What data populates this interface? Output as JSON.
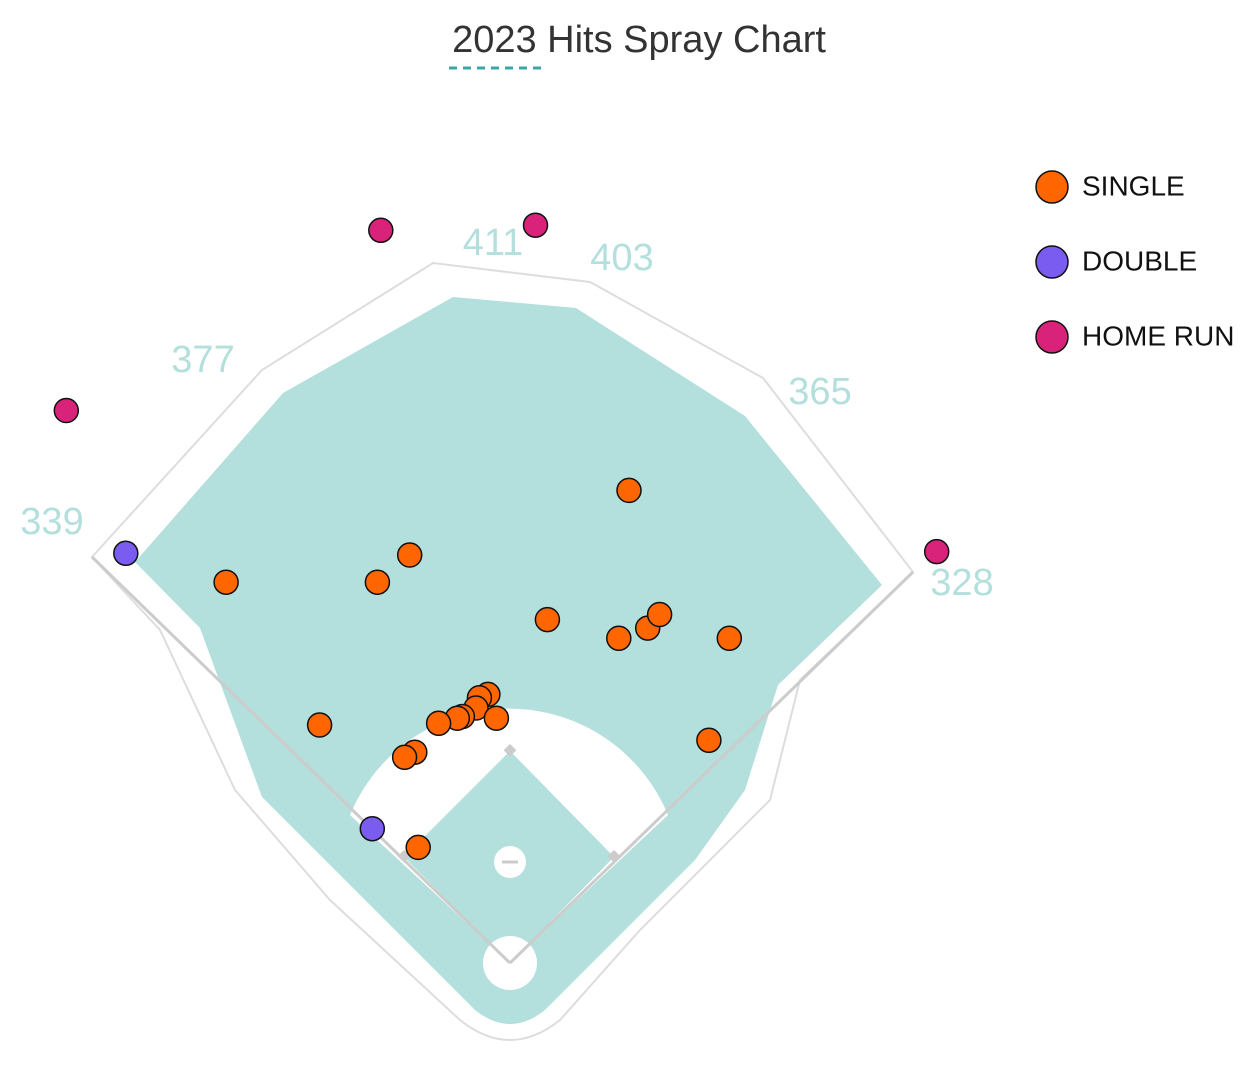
{
  "chart_data": {
    "type": "scatter",
    "title": "2023 Hits Spray Chart",
    "xlim": [
      -300,
      300
    ],
    "ylim": [
      -50,
      560
    ],
    "fence_distances": [
      339,
      377,
      411,
      403,
      365,
      328
    ],
    "series": [
      {
        "name": "SINGLE",
        "color": "#ff6600",
        "x": [
          70,
          -59,
          -167,
          -78,
          22,
          64,
          81,
          88,
          129,
          -112,
          117,
          -13,
          -18,
          -20,
          -28,
          -31,
          -42,
          -8,
          -56,
          -62,
          -54
        ],
        "y": [
          278,
          240,
          224,
          224,
          202,
          191,
          197,
          205,
          191,
          140,
          131,
          158,
          156,
          150,
          145,
          144,
          141,
          144,
          124,
          121,
          68
        ]
      },
      {
        "name": "DOUBLE",
        "color": "#7b5cf0",
        "x": [
          -226,
          -81
        ],
        "y": [
          241,
          79
        ]
      },
      {
        "name": "HOME RUN",
        "color": "#d9237a",
        "x": [
          -76,
          15,
          -261,
          251
        ],
        "y": [
          431,
          434,
          325,
          242
        ]
      }
    ]
  }
}
